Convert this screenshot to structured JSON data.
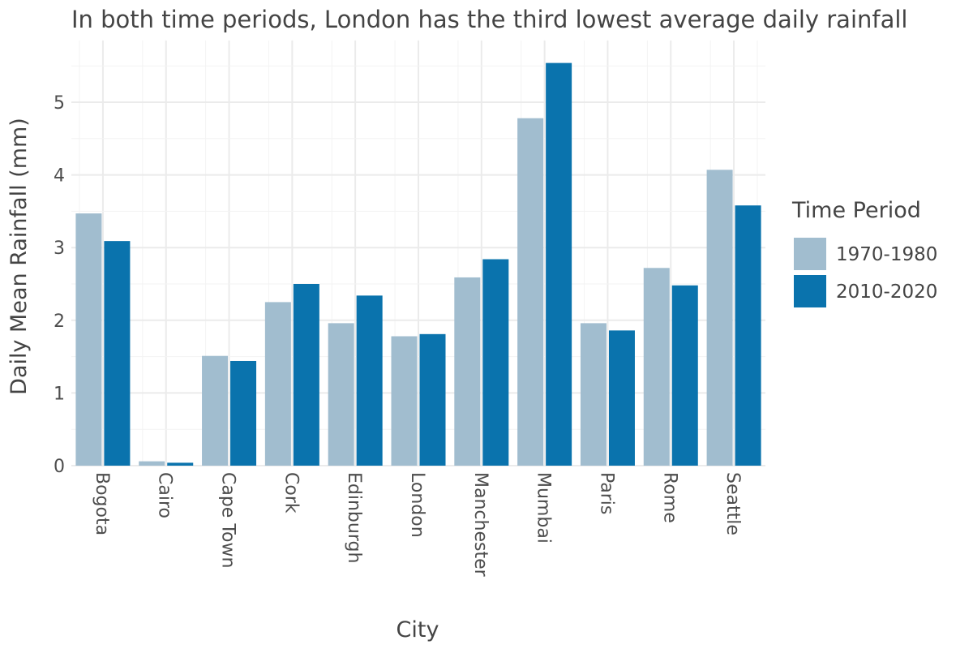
{
  "chart_data": {
    "type": "bar",
    "title": "In both time periods, London has the third lowest average daily rainfall",
    "xlabel": "City",
    "ylabel": "Daily Mean Rainfall (mm)",
    "categories": [
      "Bogota",
      "Cairo",
      "Cape Town",
      "Cork",
      "Edinburgh",
      "London",
      "Manchester",
      "Mumbai",
      "Paris",
      "Rome",
      "Seattle"
    ],
    "series": [
      {
        "name": "1970-1980",
        "color": "#a1bdcf",
        "values": [
          3.47,
          0.06,
          1.51,
          2.25,
          1.96,
          1.78,
          2.59,
          4.78,
          1.96,
          2.72,
          4.07
        ]
      },
      {
        "name": "2010-2020",
        "color": "#0a73ad",
        "values": [
          3.09,
          0.04,
          1.44,
          2.5,
          2.34,
          1.81,
          2.84,
          5.54,
          1.86,
          2.48,
          3.58
        ]
      }
    ],
    "ylim": [
      0,
      5.85
    ],
    "yticks": [
      "0",
      "1",
      "2",
      "3",
      "4",
      "5"
    ],
    "legend": {
      "title": "Time Period",
      "position": "right"
    },
    "grid": true
  }
}
